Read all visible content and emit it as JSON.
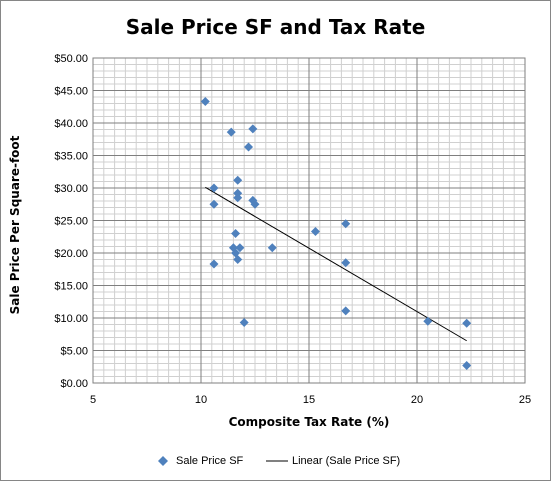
{
  "chart_data": {
    "type": "scatter",
    "title": "Sale Price SF and Tax Rate",
    "xlabel": "Composite Tax Rate (%)",
    "ylabel": "Sale Price Per Square-foot",
    "xlim": [
      5,
      25
    ],
    "ylim": [
      0,
      50
    ],
    "x_ticks": [
      5,
      10,
      15,
      20,
      25
    ],
    "x_tick_labels": [
      "5",
      "10",
      "15",
      "20",
      "25"
    ],
    "y_ticks": [
      0,
      5,
      10,
      15,
      20,
      25,
      30,
      35,
      40,
      45,
      50
    ],
    "y_tick_labels": [
      "$0.00",
      "$5.00",
      "$10.00",
      "$15.00",
      "$20.00",
      "$25.00",
      "$30.00",
      "$35.00",
      "$40.00",
      "$45.00",
      "$50.00"
    ],
    "grid": true,
    "legend_position": "bottom",
    "series": [
      {
        "name": "Sale Price SF",
        "marker": "diamond",
        "color": "#4F81BD",
        "points": [
          {
            "x": 10.2,
            "y": 43.3
          },
          {
            "x": 10.6,
            "y": 30.0
          },
          {
            "x": 10.6,
            "y": 27.5
          },
          {
            "x": 10.6,
            "y": 18.3
          },
          {
            "x": 11.4,
            "y": 38.6
          },
          {
            "x": 11.5,
            "y": 20.8
          },
          {
            "x": 11.6,
            "y": 23.0
          },
          {
            "x": 11.6,
            "y": 20.0
          },
          {
            "x": 11.7,
            "y": 31.2
          },
          {
            "x": 11.7,
            "y": 29.2
          },
          {
            "x": 11.7,
            "y": 28.5
          },
          {
            "x": 11.8,
            "y": 20.8
          },
          {
            "x": 11.7,
            "y": 19.0
          },
          {
            "x": 12.0,
            "y": 9.3
          },
          {
            "x": 12.2,
            "y": 36.3
          },
          {
            "x": 12.4,
            "y": 39.1
          },
          {
            "x": 12.4,
            "y": 28.1
          },
          {
            "x": 12.5,
            "y": 27.5
          },
          {
            "x": 13.3,
            "y": 20.8
          },
          {
            "x": 15.3,
            "y": 23.3
          },
          {
            "x": 16.7,
            "y": 24.5
          },
          {
            "x": 16.7,
            "y": 18.5
          },
          {
            "x": 16.7,
            "y": 11.1
          },
          {
            "x": 20.5,
            "y": 9.5
          },
          {
            "x": 22.3,
            "y": 9.2
          },
          {
            "x": 22.3,
            "y": 2.7
          }
        ]
      },
      {
        "name": "Linear (Sale Price SF)",
        "type": "trendline",
        "color": "#000000",
        "x_start": 10.2,
        "y_start": 30.1,
        "x_end": 22.3,
        "y_end": 6.5
      }
    ]
  }
}
